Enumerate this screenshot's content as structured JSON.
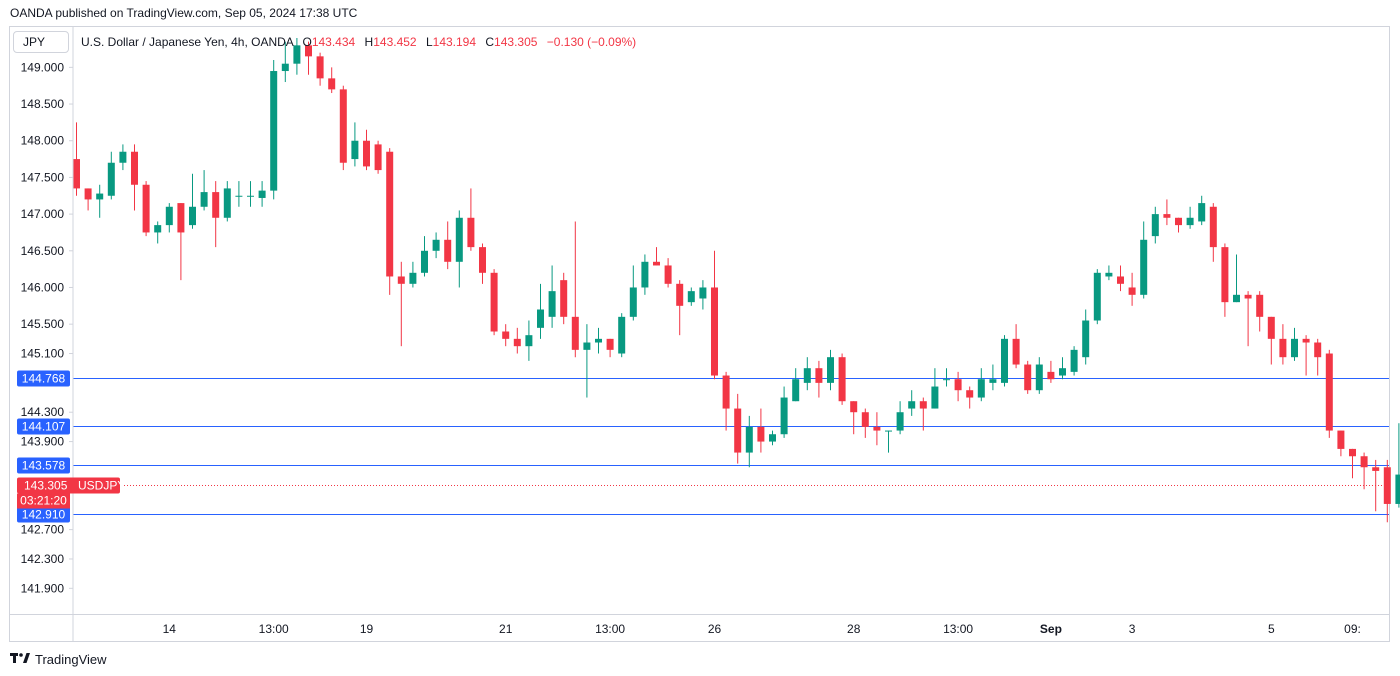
{
  "publisher_line": "OANDA published on TradingView.com, Sep 05, 2024 17:38 UTC",
  "unit_label": "JPY",
  "legend": {
    "symbol": "U.S. Dollar / Japanese Yen, 4h, OANDA",
    "open_label": "O",
    "open": "143.434",
    "high_label": "H",
    "high": "143.452",
    "low_label": "L",
    "low": "143.194",
    "close_label": "C",
    "close": "143.305",
    "change": "−0.130 (−0.09%)"
  },
  "brand": "TradingView",
  "colors": {
    "up": "#089981",
    "down": "#f23645",
    "level": "#2962ff",
    "axis": "#d1d4dc"
  },
  "chart_data": {
    "type": "candlestick",
    "ylim": [
      141.55,
      149.55
    ],
    "y_ticks": [
      "149.000",
      "148.500",
      "148.000",
      "147.500",
      "147.000",
      "146.500",
      "146.000",
      "145.500",
      "145.100",
      "144.300",
      "143.900",
      "142.700",
      "142.300",
      "141.900"
    ],
    "x_ticks": [
      {
        "label": "14",
        "index": 8
      },
      {
        "label": "13:00",
        "index": 17
      },
      {
        "label": "19",
        "index": 25
      },
      {
        "label": "21",
        "index": 37
      },
      {
        "label": "13:00",
        "index": 46
      },
      {
        "label": "26",
        "index": 55
      },
      {
        "label": "28",
        "index": 67
      },
      {
        "label": "13:00",
        "index": 76
      },
      {
        "label": "Sep",
        "index": 84
      },
      {
        "label": "3",
        "index": 91
      },
      {
        "label": "5",
        "index": 103
      },
      {
        "label": "09:",
        "index": 110
      }
    ],
    "levels": [
      {
        "value": 144.768,
        "label": "144.768"
      },
      {
        "value": 144.107,
        "label": "144.107"
      },
      {
        "value": 143.578,
        "label": "143.578"
      },
      {
        "value": 142.91,
        "label": "142.910"
      }
    ],
    "last_price": {
      "value": 143.305,
      "label": "143.305",
      "symbol": "USDJPY",
      "countdown": "03:21:20"
    },
    "candles": [
      [
        147.75,
        147.35,
        148.25,
        147.25
      ],
      [
        147.35,
        147.2,
        147.35,
        147.05
      ],
      [
        147.2,
        147.28,
        147.4,
        146.95
      ],
      [
        147.25,
        147.7,
        147.85,
        147.2
      ],
      [
        147.7,
        147.85,
        147.95,
        147.6
      ],
      [
        147.85,
        147.4,
        147.95,
        147.05
      ],
      [
        147.4,
        146.75,
        147.45,
        146.7
      ],
      [
        146.75,
        146.85,
        146.9,
        146.6
      ],
      [
        146.85,
        147.1,
        147.15,
        146.75
      ],
      [
        147.15,
        146.75,
        147.15,
        146.1
      ],
      [
        146.85,
        147.1,
        147.55,
        146.8
      ],
      [
        147.1,
        147.3,
        147.6,
        147.05
      ],
      [
        147.3,
        146.95,
        147.45,
        146.55
      ],
      [
        146.95,
        147.35,
        147.45,
        146.9
      ],
      [
        147.25,
        147.25,
        147.45,
        147.1
      ],
      [
        147.25,
        147.25,
        147.45,
        147.1
      ],
      [
        147.22,
        147.32,
        147.45,
        147.1
      ],
      [
        147.32,
        148.95,
        149.1,
        147.2
      ],
      [
        148.95,
        149.05,
        149.35,
        148.8
      ],
      [
        149.05,
        149.3,
        149.4,
        148.9
      ],
      [
        149.3,
        149.15,
        149.35,
        148.9
      ],
      [
        149.15,
        148.85,
        149.2,
        148.75
      ],
      [
        148.85,
        148.7,
        149.0,
        148.65
      ],
      [
        148.7,
        147.7,
        148.75,
        147.6
      ],
      [
        147.75,
        148.0,
        148.25,
        147.65
      ],
      [
        148.0,
        147.65,
        148.15,
        147.6
      ],
      [
        147.95,
        147.6,
        148.0,
        147.55
      ],
      [
        147.85,
        146.15,
        147.9,
        145.9
      ],
      [
        146.15,
        146.05,
        146.35,
        145.2
      ],
      [
        146.05,
        146.2,
        146.35,
        146.0
      ],
      [
        146.2,
        146.5,
        146.7,
        146.15
      ],
      [
        146.5,
        146.65,
        146.75,
        146.4
      ],
      [
        146.65,
        146.35,
        146.9,
        146.25
      ],
      [
        146.35,
        146.95,
        147.05,
        146.0
      ],
      [
        146.95,
        146.55,
        147.35,
        146.5
      ],
      [
        146.55,
        146.2,
        146.6,
        146.05
      ],
      [
        146.2,
        145.4,
        146.25,
        145.35
      ],
      [
        145.4,
        145.3,
        145.5,
        145.2
      ],
      [
        145.3,
        145.2,
        145.45,
        145.1
      ],
      [
        145.2,
        145.35,
        145.55,
        145.0
      ],
      [
        145.45,
        145.7,
        146.05,
        145.3
      ],
      [
        145.6,
        145.95,
        146.3,
        145.45
      ],
      [
        146.1,
        145.6,
        146.2,
        145.5
      ],
      [
        145.6,
        145.15,
        146.9,
        145.05
      ],
      [
        145.15,
        145.25,
        145.5,
        144.5
      ],
      [
        145.25,
        145.3,
        145.45,
        145.1
      ],
      [
        145.3,
        145.15,
        145.3,
        145.05
      ],
      [
        145.1,
        145.6,
        145.65,
        145.05
      ],
      [
        145.6,
        146.0,
        146.3,
        145.55
      ],
      [
        146.0,
        146.35,
        146.45,
        145.9
      ],
      [
        146.35,
        146.3,
        146.55,
        146.3
      ],
      [
        146.3,
        146.05,
        146.4,
        146.0
      ],
      [
        146.05,
        145.75,
        146.1,
        145.35
      ],
      [
        145.8,
        145.95,
        146.0,
        145.75
      ],
      [
        145.85,
        146.0,
        146.1,
        145.7
      ],
      [
        146.0,
        144.8,
        146.5,
        144.75
      ],
      [
        144.8,
        144.35,
        144.85,
        144.05
      ],
      [
        144.35,
        143.75,
        144.55,
        143.6
      ],
      [
        143.75,
        144.1,
        144.25,
        143.55
      ],
      [
        144.1,
        143.9,
        144.35,
        143.75
      ],
      [
        143.9,
        144.0,
        144.05,
        143.85
      ],
      [
        144.0,
        144.5,
        144.65,
        143.95
      ],
      [
        144.45,
        144.75,
        144.9,
        144.45
      ],
      [
        144.7,
        144.9,
        145.05,
        144.6
      ],
      [
        144.9,
        144.7,
        145.0,
        144.5
      ],
      [
        144.7,
        145.05,
        145.15,
        144.6
      ],
      [
        145.05,
        144.45,
        145.1,
        144.4
      ],
      [
        144.45,
        144.3,
        144.45,
        144.0
      ],
      [
        144.3,
        144.1,
        144.35,
        143.95
      ],
      [
        144.1,
        144.05,
        144.3,
        143.85
      ],
      [
        144.05,
        144.05,
        144.05,
        143.75
      ],
      [
        144.05,
        144.3,
        144.45,
        144.0
      ],
      [
        144.35,
        144.45,
        144.6,
        144.25
      ],
      [
        144.45,
        144.35,
        144.5,
        144.05
      ],
      [
        144.35,
        144.65,
        144.9,
        144.35
      ],
      [
        144.75,
        144.75,
        144.9,
        144.65
      ],
      [
        144.75,
        144.6,
        144.85,
        144.45
      ],
      [
        144.6,
        144.5,
        144.65,
        144.35
      ],
      [
        144.5,
        144.75,
        144.9,
        144.45
      ],
      [
        144.7,
        144.75,
        144.95,
        144.6
      ],
      [
        144.7,
        145.3,
        145.35,
        144.65
      ],
      [
        145.3,
        144.95,
        145.5,
        144.9
      ],
      [
        144.95,
        144.6,
        145.0,
        144.55
      ],
      [
        144.6,
        144.95,
        145.05,
        144.55
      ],
      [
        144.85,
        144.75,
        145.0,
        144.7
      ],
      [
        144.8,
        144.9,
        145.05,
        144.75
      ],
      [
        144.85,
        145.15,
        145.2,
        144.8
      ],
      [
        145.05,
        145.55,
        145.7,
        144.95
      ],
      [
        145.55,
        146.2,
        146.25,
        145.5
      ],
      [
        146.15,
        146.2,
        146.3,
        146.1
      ],
      [
        146.15,
        146.05,
        146.3,
        145.95
      ],
      [
        146.0,
        145.9,
        146.2,
        145.75
      ],
      [
        145.9,
        146.65,
        146.9,
        145.85
      ],
      [
        146.7,
        147.0,
        147.1,
        146.6
      ],
      [
        147.0,
        146.95,
        147.2,
        146.85
      ],
      [
        146.95,
        146.85,
        146.95,
        146.75
      ],
      [
        146.85,
        146.95,
        147.1,
        146.8
      ],
      [
        146.9,
        147.15,
        147.25,
        146.85
      ],
      [
        147.1,
        146.55,
        147.15,
        146.35
      ],
      [
        146.55,
        145.8,
        146.6,
        145.6
      ],
      [
        145.8,
        145.9,
        146.45,
        145.8
      ],
      [
        145.9,
        145.85,
        145.95,
        145.2
      ],
      [
        145.9,
        145.6,
        145.95,
        145.4
      ],
      [
        145.6,
        145.3,
        145.6,
        144.95
      ],
      [
        145.3,
        145.05,
        145.5,
        144.95
      ],
      [
        145.05,
        145.3,
        145.45,
        145.0
      ],
      [
        145.3,
        145.25,
        145.35,
        144.8
      ],
      [
        145.25,
        145.05,
        145.3,
        144.8
      ],
      [
        145.1,
        144.05,
        145.15,
        143.95
      ],
      [
        144.05,
        143.8,
        144.05,
        143.7
      ],
      [
        143.8,
        143.7,
        143.8,
        143.4
      ],
      [
        143.7,
        143.55,
        143.75,
        143.25
      ],
      [
        143.55,
        143.5,
        143.65,
        142.95
      ],
      [
        143.55,
        143.05,
        143.65,
        142.8
      ],
      [
        143.05,
        143.45,
        144.15,
        143.0
      ],
      [
        143.434,
        143.305,
        143.452,
        143.194
      ]
    ]
  }
}
